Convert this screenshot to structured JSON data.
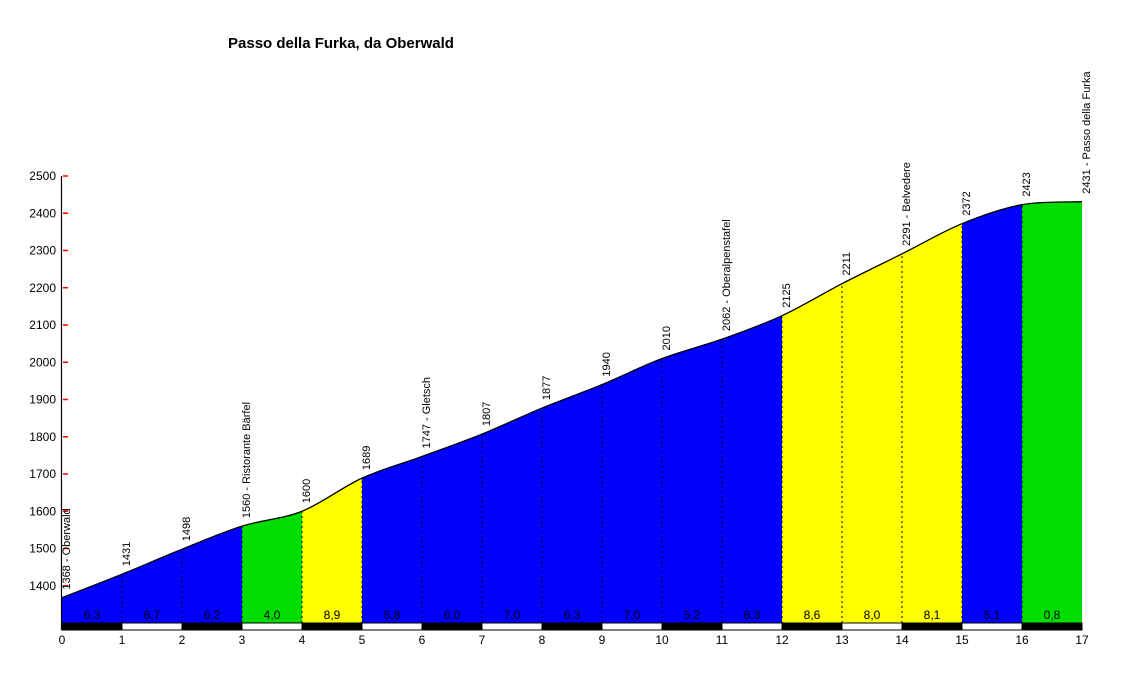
{
  "title": "Passo della Furka, da Oberwald",
  "chart_data": {
    "type": "area",
    "title": "Passo della Furka, da Oberwald",
    "xlabel": "",
    "ylabel": "",
    "xlim": [
      0,
      17
    ],
    "ylim": [
      1300,
      2500
    ],
    "x_ticks": [
      0,
      1,
      2,
      3,
      4,
      5,
      6,
      7,
      8,
      9,
      10,
      11,
      12,
      13,
      14,
      15,
      16,
      17
    ],
    "y_ticks": [
      1400,
      1500,
      1600,
      1700,
      1800,
      1900,
      2000,
      2100,
      2200,
      2300,
      2400,
      2500
    ],
    "grid": "dashed vertical line at every km",
    "legend": null,
    "points": [
      {
        "km": 0,
        "elevation": 1368,
        "label": "1368 - Oberwald"
      },
      {
        "km": 1,
        "elevation": 1431,
        "label": "1431"
      },
      {
        "km": 2,
        "elevation": 1498,
        "label": "1498"
      },
      {
        "km": 3,
        "elevation": 1560,
        "label": "1560 - Ristorante Bärfel"
      },
      {
        "km": 4,
        "elevation": 1600,
        "label": "1600"
      },
      {
        "km": 5,
        "elevation": 1689,
        "label": "1689"
      },
      {
        "km": 6,
        "elevation": 1747,
        "label": "1747 - Gletsch"
      },
      {
        "km": 7,
        "elevation": 1807,
        "label": "1807"
      },
      {
        "km": 8,
        "elevation": 1877,
        "label": "1877"
      },
      {
        "km": 9,
        "elevation": 1940,
        "label": "1940"
      },
      {
        "km": 10,
        "elevation": 2010,
        "label": "2010"
      },
      {
        "km": 11,
        "elevation": 2062,
        "label": "2062 - Oberalpenstafel"
      },
      {
        "km": 12,
        "elevation": 2125,
        "label": "2125"
      },
      {
        "km": 13,
        "elevation": 2211,
        "label": "2211"
      },
      {
        "km": 14,
        "elevation": 2291,
        "label": "2291 - Belvedere"
      },
      {
        "km": 15,
        "elevation": 2372,
        "label": "2372"
      },
      {
        "km": 16,
        "elevation": 2423,
        "label": "2423"
      },
      {
        "km": 17,
        "elevation": 2431,
        "label": "2431 - Passo della Furka"
      }
    ],
    "segments": [
      {
        "from": 0,
        "to": 1,
        "gradient": 6.3,
        "label": "6,3",
        "steepness": "blue"
      },
      {
        "from": 1,
        "to": 2,
        "gradient": 6.7,
        "label": "6,7",
        "steepness": "blue"
      },
      {
        "from": 2,
        "to": 3,
        "gradient": 6.2,
        "label": "6,2",
        "steepness": "blue"
      },
      {
        "from": 3,
        "to": 4,
        "gradient": 4.0,
        "label": "4,0",
        "steepness": "green"
      },
      {
        "from": 4,
        "to": 5,
        "gradient": 8.9,
        "label": "8,9",
        "steepness": "yellow"
      },
      {
        "from": 5,
        "to": 6,
        "gradient": 5.8,
        "label": "5,8",
        "steepness": "blue"
      },
      {
        "from": 6,
        "to": 7,
        "gradient": 6.0,
        "label": "6,0",
        "steepness": "blue"
      },
      {
        "from": 7,
        "to": 8,
        "gradient": 7.0,
        "label": "7,0",
        "steepness": "blue"
      },
      {
        "from": 8,
        "to": 9,
        "gradient": 6.3,
        "label": "6,3",
        "steepness": "blue"
      },
      {
        "from": 9,
        "to": 10,
        "gradient": 7.0,
        "label": "7,0",
        "steepness": "blue"
      },
      {
        "from": 10,
        "to": 11,
        "gradient": 5.2,
        "label": "5,2",
        "steepness": "blue"
      },
      {
        "from": 11,
        "to": 12,
        "gradient": 6.3,
        "label": "6,3",
        "steepness": "blue"
      },
      {
        "from": 12,
        "to": 13,
        "gradient": 8.6,
        "label": "8,6",
        "steepness": "yellow"
      },
      {
        "from": 13,
        "to": 14,
        "gradient": 8.0,
        "label": "8,0",
        "steepness": "yellow"
      },
      {
        "from": 14,
        "to": 15,
        "gradient": 8.1,
        "label": "8,1",
        "steepness": "yellow"
      },
      {
        "from": 15,
        "to": 16,
        "gradient": 5.1,
        "label": "5,1",
        "steepness": "blue"
      },
      {
        "from": 16,
        "to": 17,
        "gradient": 0.8,
        "label": "0,8",
        "steepness": "green"
      }
    ],
    "palette": {
      "blue": "#0000FF",
      "green": "#00DD00",
      "yellow": "#FFFF00"
    },
    "axis_tick_color": "#FF0000",
    "outline_color": "#000000",
    "km_bar_pattern": [
      "black",
      "white"
    ]
  }
}
